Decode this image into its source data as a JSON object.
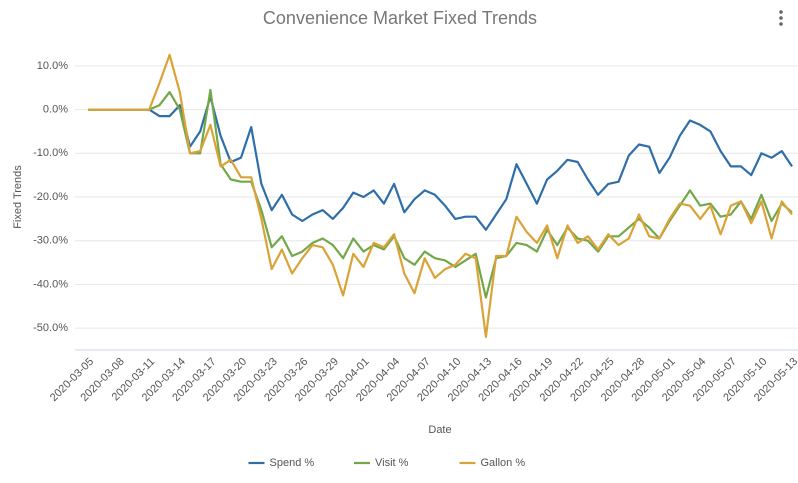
{
  "chart_data": {
    "type": "line",
    "title": "Convenience Market Fixed Trends",
    "xlabel": "Date",
    "ylabel": "Fixed Trends",
    "categories": [
      "2020-03-05",
      null,
      null,
      "2020-03-08",
      null,
      null,
      "2020-03-11",
      null,
      null,
      "2020-03-14",
      null,
      null,
      "2020-03-17",
      null,
      null,
      "2020-03-20",
      null,
      null,
      "2020-03-23",
      null,
      null,
      "2020-03-26",
      null,
      null,
      "2020-03-29",
      null,
      null,
      "2020-04-01",
      null,
      null,
      "2020-04-04",
      null,
      null,
      "2020-04-07",
      null,
      null,
      "2020-04-10",
      null,
      null,
      "2020-04-13",
      null,
      null,
      "2020-04-16",
      null,
      null,
      "2020-04-19",
      null,
      null,
      "2020-04-22",
      null,
      null,
      "2020-04-25",
      null,
      null,
      "2020-04-28",
      null,
      null,
      "2020-05-01",
      null,
      null,
      "2020-05-04",
      null,
      null,
      "2020-05-07",
      null,
      null,
      "2020-05-10",
      null,
      null,
      "2020-05-13"
    ],
    "series": [
      {
        "name": "Spend %",
        "color": "#2f6ea8",
        "values": [
          0,
          0,
          0,
          0,
          0,
          0,
          0,
          -1.5,
          -1.5,
          1,
          -8.5,
          -5,
          3,
          -6,
          -12,
          -11,
          -4,
          -17,
          -23,
          -19.5,
          -24,
          -25.5,
          -24,
          -23,
          -25,
          -22.5,
          -19,
          -20,
          -18.5,
          -21.5,
          -17,
          -23.5,
          -20.5,
          -18.5,
          -19.5,
          -22,
          -25,
          -24.5,
          -24.5,
          -27.5,
          -24,
          -20.5,
          -12.5,
          -17,
          -21.5,
          -16,
          -14,
          -11.5,
          -12,
          -16,
          -19.5,
          -17,
          -16.5,
          -10.5,
          -8,
          -8.5,
          -14.5,
          -11,
          -6,
          -2.5,
          -3.5,
          -5,
          -9.5,
          -13,
          -13,
          -15,
          -10,
          -11,
          -9.5,
          -13
        ]
      },
      {
        "name": "Visit %",
        "color": "#72a84a",
        "values": [
          0,
          0,
          0,
          0,
          0,
          0,
          0,
          1,
          4,
          0,
          -10,
          -10,
          4.5,
          -12.5,
          -16,
          -16.5,
          -16.5,
          -23,
          -31.5,
          -29,
          -33.5,
          -32.5,
          -30.5,
          -29.5,
          -31,
          -34,
          -29.5,
          -32.5,
          -31,
          -32,
          -29,
          -34,
          -35.5,
          -32.5,
          -34,
          -34.5,
          -36,
          -34.5,
          -33,
          -43,
          -34,
          -33.5,
          -30.5,
          -31,
          -32.5,
          -27.5,
          -31,
          -27,
          -29.5,
          -30,
          -32.5,
          -29,
          -29,
          -27,
          -25,
          -27,
          -29.5,
          -25.5,
          -22,
          -18.5,
          -22,
          -21.5,
          -24.5,
          -24,
          -21,
          -25,
          -19.5,
          -25.5,
          -21.5,
          -23.5
        ]
      },
      {
        "name": "Gallon %",
        "color": "#dba237",
        "values": [
          0,
          0,
          0,
          0,
          0,
          0,
          0,
          6,
          12.5,
          4,
          -10,
          -9.5,
          -3.5,
          -13,
          -11.5,
          -15.5,
          -15.5,
          -25,
          -36.5,
          -32,
          -37.5,
          -34,
          -31,
          -31.5,
          -35.5,
          -42.5,
          -33,
          -36,
          -30.5,
          -31.5,
          -28.5,
          -37.5,
          -42,
          -34,
          -38.5,
          -36.5,
          -35.5,
          -33,
          -34,
          -52,
          -33.5,
          -33.5,
          -24.5,
          -28,
          -30.5,
          -26.5,
          -34,
          -26.5,
          -30.5,
          -29,
          -32,
          -28.5,
          -31,
          -29.5,
          -24,
          -29,
          -29.5,
          -25,
          -21.5,
          -22,
          -25,
          -22,
          -28.5,
          -22,
          -21,
          -26,
          -21,
          -29.5,
          -21,
          -24
        ]
      }
    ],
    "ylim": [
      -55,
      15
    ],
    "yticks": [
      {
        "value": 10,
        "label": "10.0%"
      },
      {
        "value": 0,
        "label": "0.0%"
      },
      {
        "value": -10,
        "label": "-10.0%"
      },
      {
        "value": -20,
        "label": "-20.0%"
      },
      {
        "value": -30,
        "label": "-30.0%"
      },
      {
        "value": -40,
        "label": "-40.0%"
      },
      {
        "value": -50,
        "label": "-50.0%"
      }
    ],
    "grid": true,
    "legend": "bottom"
  }
}
